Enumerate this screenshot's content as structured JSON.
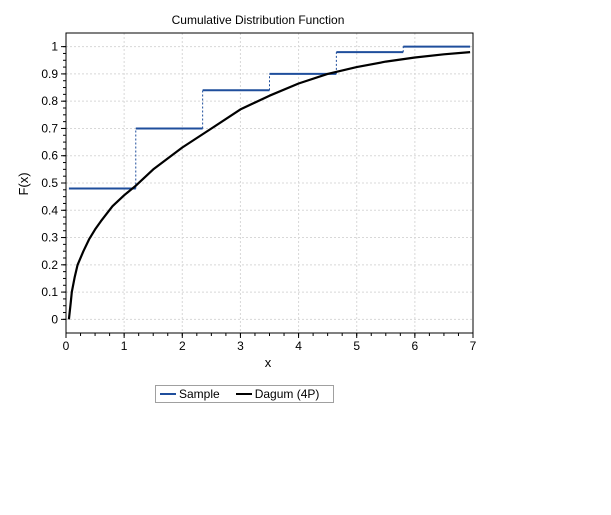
{
  "chart_data": {
    "type": "line",
    "title": "Cumulative Distribution Function",
    "xlabel": "x",
    "ylabel": "F(x)",
    "xlim": [
      0,
      7
    ],
    "ylim": [
      -0.05,
      1.05
    ],
    "xticks": [
      "0",
      "1",
      "2",
      "3",
      "4",
      "5",
      "6",
      "7"
    ],
    "yticks": [
      "0",
      "0.1",
      "0.2",
      "0.3",
      "0.4",
      "0.5",
      "0.6",
      "0.7",
      "0.8",
      "0.9",
      "1"
    ],
    "grid": true,
    "legend_position": "bottom",
    "series": [
      {
        "name": "Sample",
        "kind": "step",
        "color": "#1f4e9c",
        "steps": [
          {
            "x_start": 0.05,
            "x_end": 1.2,
            "y": 0.48
          },
          {
            "x_start": 1.2,
            "x_end": 2.35,
            "y": 0.7
          },
          {
            "x_start": 2.35,
            "x_end": 3.5,
            "y": 0.84
          },
          {
            "x_start": 3.5,
            "x_end": 4.65,
            "y": 0.9
          },
          {
            "x_start": 4.65,
            "x_end": 5.8,
            "y": 0.98
          },
          {
            "x_start": 5.8,
            "x_end": 6.95,
            "y": 1.0
          }
        ]
      },
      {
        "name": "Dagum (4P)",
        "kind": "line",
        "color": "#000000",
        "x": [
          0.05,
          0.08,
          0.1,
          0.15,
          0.2,
          0.3,
          0.4,
          0.5,
          0.6,
          0.8,
          1.0,
          1.2,
          1.5,
          2.0,
          2.5,
          3.0,
          3.5,
          4.0,
          4.5,
          5.0,
          5.5,
          6.0,
          6.5,
          6.95
        ],
        "y": [
          0.0,
          0.06,
          0.1,
          0.155,
          0.2,
          0.25,
          0.295,
          0.33,
          0.36,
          0.415,
          0.455,
          0.49,
          0.55,
          0.63,
          0.7,
          0.77,
          0.82,
          0.865,
          0.9,
          0.925,
          0.945,
          0.96,
          0.972,
          0.98
        ]
      }
    ]
  }
}
